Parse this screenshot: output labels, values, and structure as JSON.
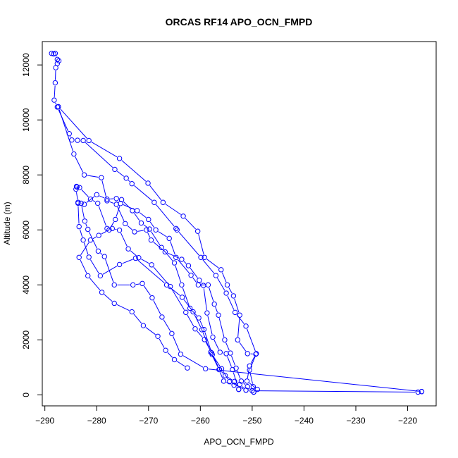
{
  "chart_data": {
    "type": "scatter",
    "title": "ORCAS RF14 APO_OCN_FMPD",
    "xlabel": "APO_OCN_FMPD",
    "ylabel": "Altitude (m)",
    "xlim": [
      -290.5,
      -214.5
    ],
    "ylim": [
      -400,
      12850
    ],
    "xticks": [
      -290,
      -280,
      -270,
      -260,
      -250,
      -240,
      -230,
      -220
    ],
    "yticks": [
      0,
      2000,
      4000,
      6000,
      8000,
      10000,
      12000
    ],
    "grid": false,
    "color": "#0000ff",
    "marker": "open-circle",
    "series": [
      {
        "points": [
          [
            -288.7,
            12420
          ],
          [
            -288.3,
            12400
          ],
          [
            -288.0,
            12420
          ],
          [
            -287.6,
            12200
          ],
          [
            -287.3,
            12150
          ],
          [
            -287.6,
            12050
          ],
          [
            -287.9,
            11900
          ],
          [
            -288.0,
            11350
          ],
          [
            -288.2,
            10720
          ],
          [
            -287.6,
            10470
          ],
          [
            -285.3,
            9500
          ],
          [
            -284.8,
            9270
          ],
          [
            -283.7,
            9260
          ],
          [
            -282.6,
            9250
          ],
          [
            -276.5,
            8200
          ],
          [
            -274.3,
            7880
          ],
          [
            -273.2,
            7680
          ],
          [
            -268.9,
            7000
          ],
          [
            -264.7,
            6050
          ],
          [
            -264.5,
            6000
          ],
          [
            -259.9,
            5000
          ],
          [
            -257.0,
            4340
          ],
          [
            -255.0,
            3700
          ],
          [
            -253.3,
            3000
          ],
          [
            -251.2,
            2500
          ],
          [
            -249.2,
            1500
          ],
          [
            -250.5,
            900
          ],
          [
            -249.8,
            300
          ],
          [
            -250.0,
            150
          ],
          [
            -218.0,
            100
          ],
          [
            -217.3,
            120
          ]
        ]
      },
      {
        "points": [
          [
            -217.3,
            120
          ],
          [
            -259.0,
            950
          ],
          [
            -263.8,
            1480
          ],
          [
            -265.5,
            2230
          ],
          [
            -267.4,
            2830
          ],
          [
            -269.3,
            3530
          ],
          [
            -271.2,
            4050
          ],
          [
            -273.0,
            4000
          ],
          [
            -276.6,
            4000
          ],
          [
            -278.5,
            5030
          ],
          [
            -279.7,
            5230
          ],
          [
            -281.7,
            6020
          ],
          [
            -282.3,
            6320
          ],
          [
            -283.0,
            6970
          ],
          [
            -283.6,
            7000
          ],
          [
            -284.0,
            7480
          ],
          [
            -283.9,
            7580
          ],
          [
            -283.8,
            7560
          ],
          [
            -283.3,
            7540
          ],
          [
            -281.2,
            7120
          ],
          [
            -279.8,
            6970
          ],
          [
            -278.0,
            6050
          ],
          [
            -277.0,
            6050
          ],
          [
            -275.6,
            5990
          ],
          [
            -273.9,
            5310
          ],
          [
            -271.9,
            4990
          ],
          [
            -269.4,
            4730
          ],
          [
            -265.8,
            3940
          ],
          [
            -262.8,
            3000
          ],
          [
            -261.0,
            2400
          ],
          [
            -259.2,
            2010
          ],
          [
            -257.8,
            1520
          ],
          [
            -256.3,
            920
          ],
          [
            -255.2,
            700
          ],
          [
            -253.4,
            490
          ],
          [
            -252.4,
            380
          ],
          [
            -251.2,
            170
          ]
        ]
      },
      {
        "points": [
          [
            -251.2,
            170
          ],
          [
            -254.4,
            480
          ],
          [
            -255.9,
            950
          ],
          [
            -257.7,
            1460
          ],
          [
            -259.3,
            2380
          ],
          [
            -260.3,
            2800
          ],
          [
            -262.0,
            3150
          ],
          [
            -263.6,
            4000
          ],
          [
            -265.0,
            4800
          ],
          [
            -267.5,
            5360
          ],
          [
            -269.8,
            6030
          ],
          [
            -271.4,
            6250
          ],
          [
            -273.1,
            6700
          ],
          [
            -275.2,
            7100
          ],
          [
            -276.2,
            7140
          ],
          [
            -278.0,
            7120
          ],
          [
            -280.0,
            7280
          ],
          [
            -282.4,
            6930
          ],
          [
            -283.6,
            6970
          ],
          [
            -283.4,
            6120
          ],
          [
            -282.6,
            5630
          ],
          [
            -281.5,
            5010
          ],
          [
            -279.3,
            4330
          ],
          [
            -275.6,
            4740
          ],
          [
            -272.5,
            4970
          ],
          [
            -266.5,
            4000
          ],
          [
            -263.5,
            3550
          ],
          [
            -261.4,
            3020
          ],
          [
            -259.7,
            2370
          ],
          [
            -258.0,
            1550
          ],
          [
            -256.4,
            920
          ],
          [
            -255.5,
            500
          ],
          [
            -253.5,
            350
          ],
          [
            -252.6,
            200
          ]
        ]
      },
      {
        "points": [
          [
            -252.6,
            200
          ],
          [
            -253.8,
            920
          ],
          [
            -255.0,
            1500
          ],
          [
            -256.2,
            1550
          ],
          [
            -257.6,
            2100
          ],
          [
            -258.7,
            2980
          ],
          [
            -259.4,
            3980
          ],
          [
            -260.2,
            4170
          ],
          [
            -262.3,
            4700
          ],
          [
            -263.6,
            4930
          ],
          [
            -266.8,
            5200
          ],
          [
            -269.5,
            5630
          ],
          [
            -270.4,
            6000
          ],
          [
            -272.7,
            5930
          ],
          [
            -274.5,
            6230
          ],
          [
            -276.2,
            6930
          ],
          [
            -278.0,
            7060
          ],
          [
            -279.1,
            7900
          ],
          [
            -282.4,
            8000
          ],
          [
            -284.4,
            8760
          ],
          [
            -287.4,
            10480
          ]
        ]
      },
      {
        "points": [
          [
            -287.4,
            10480
          ],
          [
            -281.5,
            9250
          ],
          [
            -275.6,
            8600
          ],
          [
            -270.1,
            7700
          ],
          [
            -267.2,
            7000
          ],
          [
            -263.3,
            6500
          ],
          [
            -260.5,
            5950
          ],
          [
            -259.2,
            5000
          ],
          [
            -256.0,
            4550
          ],
          [
            -254.8,
            4000
          ],
          [
            -253.6,
            3600
          ],
          [
            -252.4,
            2900
          ],
          [
            -252.8,
            2000
          ],
          [
            -250.9,
            1500
          ],
          [
            -249.3,
            1480
          ],
          [
            -250.5,
            1050
          ],
          [
            -251.0,
            500
          ],
          [
            -249.0,
            200
          ],
          [
            -249.7,
            100
          ]
        ]
      },
      {
        "points": [
          [
            -249.7,
            100
          ],
          [
            -250.9,
            300
          ],
          [
            -252.1,
            500
          ],
          [
            -253.1,
            970
          ],
          [
            -254.2,
            1520
          ],
          [
            -255.3,
            2000
          ],
          [
            -256.5,
            2900
          ],
          [
            -257.3,
            3300
          ],
          [
            -258.5,
            4000
          ],
          [
            -260.4,
            4000
          ],
          [
            -261.8,
            4350
          ],
          [
            -264.7,
            5000
          ],
          [
            -266.0,
            5690
          ],
          [
            -268.6,
            6000
          ],
          [
            -270.0,
            6380
          ],
          [
            -272.2,
            6700
          ],
          [
            -275.4,
            6960
          ],
          [
            -276.4,
            6380
          ],
          [
            -277.6,
            6000
          ],
          [
            -279.6,
            5800
          ],
          [
            -281.2,
            5630
          ],
          [
            -283.4,
            5000
          ],
          [
            -281.7,
            4330
          ],
          [
            -279.0,
            3730
          ],
          [
            -276.6,
            3330
          ],
          [
            -273.2,
            3020
          ],
          [
            -271.0,
            2520
          ],
          [
            -268.2,
            2130
          ],
          [
            -266.7,
            1620
          ],
          [
            -265.0,
            1280
          ],
          [
            -262.5,
            980
          ]
        ]
      }
    ]
  }
}
